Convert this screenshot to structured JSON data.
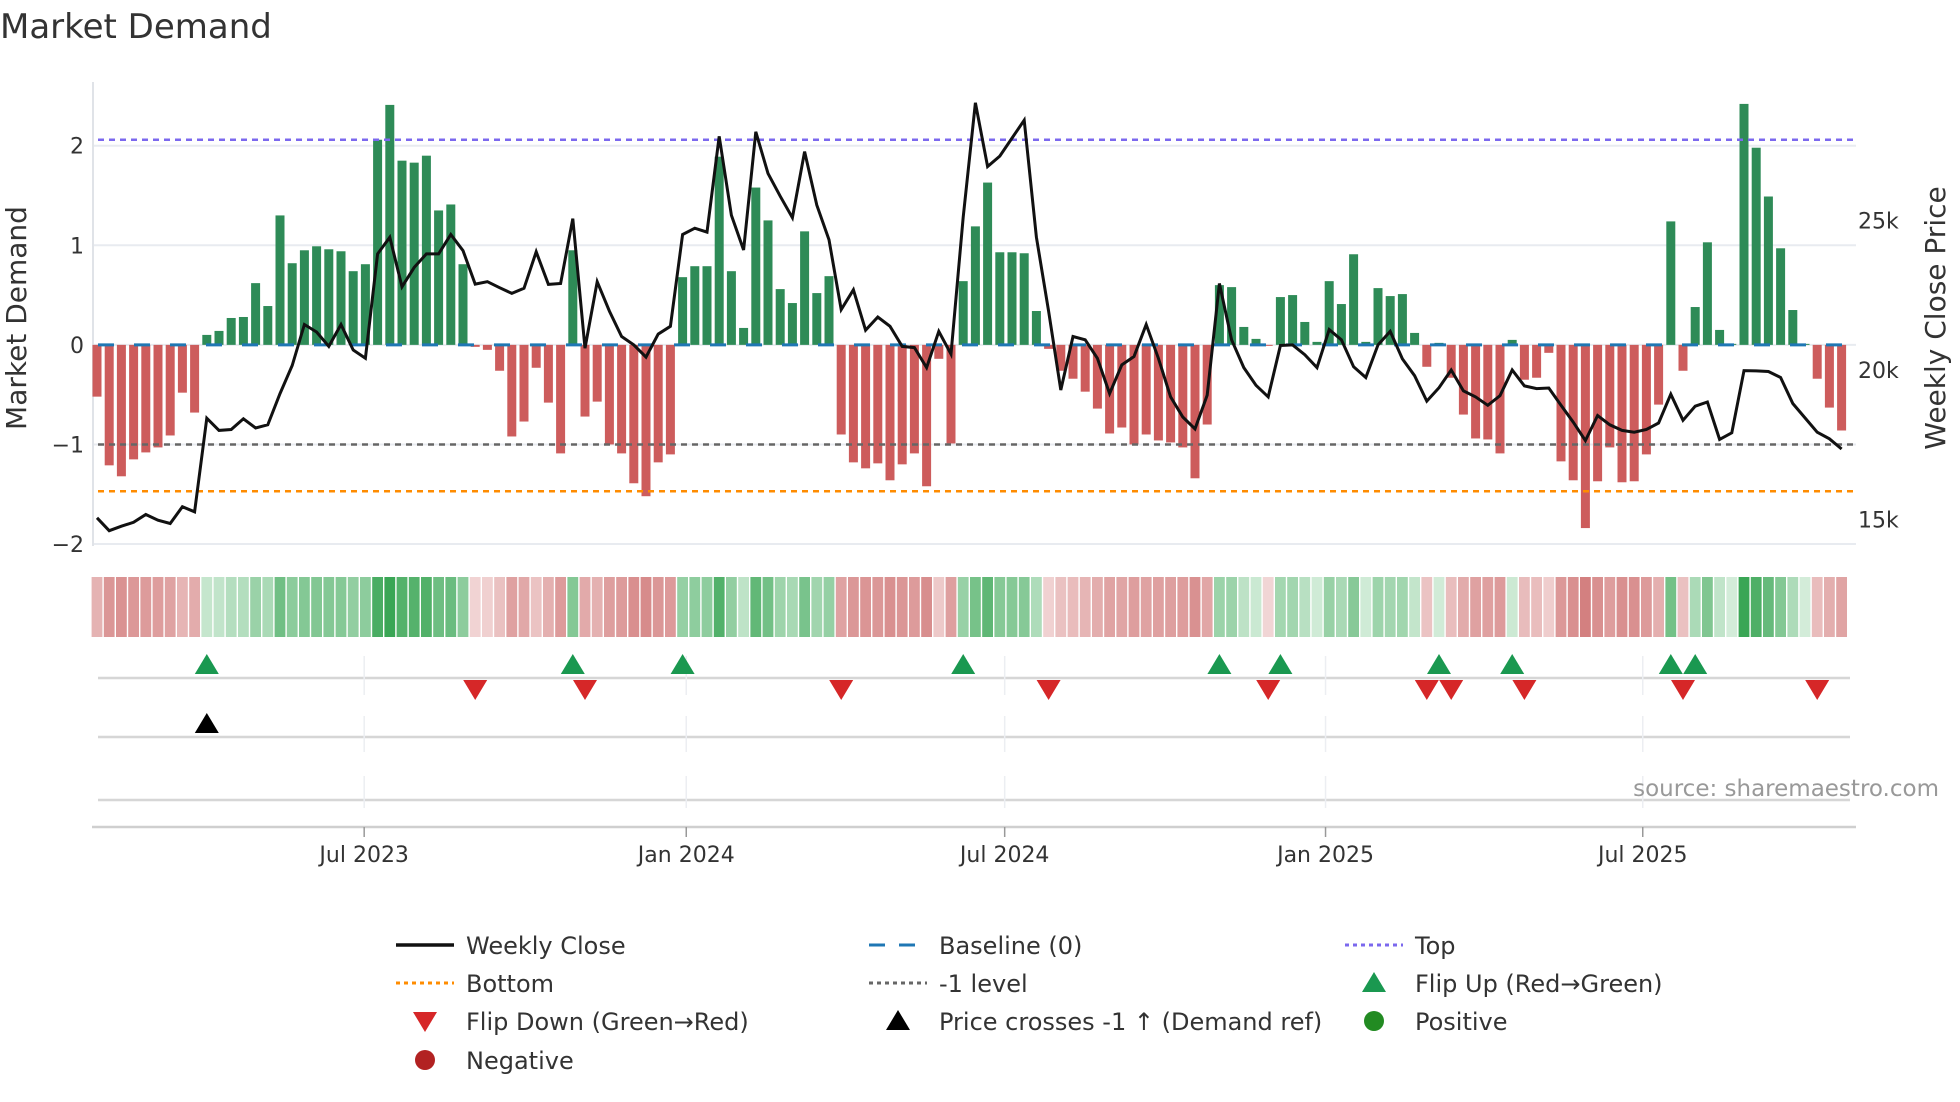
{
  "chart_data": {
    "type": "bar",
    "title": "Market Demand",
    "ylabel": "Market Demand",
    "y2label": "Weekly Close Price",
    "ylim": [
      -2.02,
      2.64
    ],
    "yticks": [
      {
        "v": 2,
        "label": "2"
      },
      {
        "v": 1,
        "label": "1"
      },
      {
        "v": 0,
        "label": "0"
      },
      {
        "v": -1,
        "label": "−1"
      },
      {
        "v": -2,
        "label": "−2"
      }
    ],
    "y2ticks": [
      {
        "v": 25000,
        "label": "25k"
      },
      {
        "v": 20000,
        "label": "20k"
      },
      {
        "v": 15000,
        "label": "15k"
      }
    ],
    "xticks": [
      {
        "week": 21.9,
        "label": "Jul 2023"
      },
      {
        "week": 48.3,
        "label": "Jan 2024"
      },
      {
        "week": 74.4,
        "label": "Jul 2024"
      },
      {
        "week": 100.7,
        "label": "Jan 2025"
      },
      {
        "week": 126.7,
        "label": "Jul 2025"
      }
    ],
    "levels": {
      "top": 2.06,
      "baseline": 0,
      "minus_one": -1,
      "bottom": -1.47
    },
    "demand": [
      -0.52,
      -1.21,
      -1.32,
      -1.15,
      -1.08,
      -1.03,
      -0.91,
      -0.48,
      -0.68,
      0.1,
      0.14,
      0.27,
      0.28,
      0.62,
      0.39,
      1.3,
      0.82,
      0.95,
      0.99,
      0.96,
      0.94,
      0.74,
      0.81,
      2.06,
      2.41,
      1.85,
      1.83,
      1.9,
      1.35,
      1.41,
      0.81,
      -0.02,
      -0.05,
      -0.26,
      -0.92,
      -0.77,
      -0.23,
      -0.58,
      -1.09,
      0.95,
      -0.72,
      -0.57,
      -1.0,
      -1.09,
      -1.39,
      -1.52,
      -1.18,
      -1.1,
      0.68,
      0.79,
      0.79,
      1.89,
      0.74,
      0.17,
      1.58,
      1.25,
      0.56,
      0.42,
      1.14,
      0.52,
      0.69,
      -0.9,
      -1.18,
      -1.24,
      -1.19,
      -1.36,
      -1.2,
      -1.09,
      -1.42,
      -0.14,
      -0.99,
      0.64,
      1.19,
      1.63,
      0.93,
      0.93,
      0.92,
      0.34,
      -0.04,
      -0.26,
      -0.34,
      -0.47,
      -0.64,
      -0.89,
      -0.83,
      -1.0,
      -0.9,
      -0.96,
      -0.98,
      -1.03,
      -1.34,
      -0.8,
      0.6,
      0.58,
      0.18,
      0.06,
      -0.01,
      0.48,
      0.5,
      0.23,
      0.03,
      0.64,
      0.41,
      0.91,
      0.03,
      0.57,
      0.49,
      0.51,
      0.12,
      -0.22,
      0.02,
      -0.33,
      -0.7,
      -0.94,
      -0.95,
      -1.09,
      0.05,
      -0.35,
      -0.33,
      -0.08,
      -1.17,
      -1.36,
      -1.84,
      -1.37,
      -1.03,
      -1.38,
      -1.37,
      -1.1,
      -0.6,
      1.24,
      -0.26,
      0.38,
      1.03,
      0.15,
      0.01,
      2.42,
      1.98,
      1.49,
      0.97,
      0.35,
      0.01,
      -0.34,
      -0.63,
      -0.86
    ],
    "weekly_close": [
      15060,
      14630,
      14780,
      14910,
      15170,
      14980,
      14870,
      15430,
      15260,
      18390,
      17980,
      18010,
      18370,
      18060,
      18170,
      19210,
      20150,
      21520,
      21270,
      20790,
      21520,
      20670,
      20390,
      23880,
      24440,
      22780,
      23430,
      23880,
      23880,
      24530,
      23990,
      22870,
      22950,
      22750,
      22560,
      22730,
      23950,
      22860,
      22890,
      25060,
      20730,
      22950,
      21970,
      21120,
      20840,
      20430,
      21200,
      21460,
      24530,
      24740,
      24610,
      27810,
      25170,
      24010,
      27960,
      26570,
      25810,
      25090,
      27300,
      25510,
      24350,
      22020,
      22680,
      21330,
      21770,
      21460,
      20790,
      20750,
      20080,
      21290,
      20530,
      25110,
      28930,
      26800,
      27150,
      27750,
      28350,
      24440,
      21970,
      19330,
      21120,
      21010,
      20390,
      19210,
      20170,
      20450,
      21520,
      20390,
      19100,
      18430,
      18030,
      19160,
      22890,
      21010,
      20080,
      19490,
      19100,
      20820,
      20840,
      20510,
      20080,
      21350,
      21010,
      20110,
      19750,
      20840,
      21290,
      20370,
      19810,
      18960,
      19410,
      20000,
      19300,
      19100,
      18820,
      19140,
      20000,
      19470,
      19380,
      19400,
      18820,
      18260,
      17640,
      18480,
      18170,
      17980,
      17920,
      18010,
      18230,
      19190,
      18320,
      18790,
      18930,
      17680,
      17900,
      19980,
      19970,
      19950,
      19750,
      18880,
      18400,
      17920,
      17700,
      17360
    ],
    "price_cross_weeks": [
      9
    ],
    "legend": [
      {
        "key": "weekly_close",
        "label": "Weekly Close"
      },
      {
        "key": "baseline",
        "label": "Baseline (0)"
      },
      {
        "key": "top",
        "label": "Top"
      },
      {
        "key": "bottom",
        "label": "Bottom"
      },
      {
        "key": "minus_one",
        "label": "-1 level"
      },
      {
        "key": "flip_up",
        "label": "Flip Up (Red→Green)"
      },
      {
        "key": "flip_down",
        "label": "Flip Down (Green→Red)"
      },
      {
        "key": "price_cross",
        "label": "Price crosses -1 ↑ (Demand ref)"
      },
      {
        "key": "positive",
        "label": "Positive"
      },
      {
        "key": "negative",
        "label": "Negative"
      }
    ],
    "legend_placement": "bottom",
    "source": "source: sharemaestro.com",
    "colors": {
      "positive": "#2e8b57",
      "negative": "#cd5c5c",
      "line": "#111111",
      "baseline": "#1f77b4",
      "top": "#7b68ee",
      "bottom": "#ff8c00",
      "minus_one": "#666666",
      "flip_up": "#1a9850",
      "flip_down": "#d62728",
      "pos_dot": "#228b22",
      "neg_dot": "#b22222"
    }
  }
}
